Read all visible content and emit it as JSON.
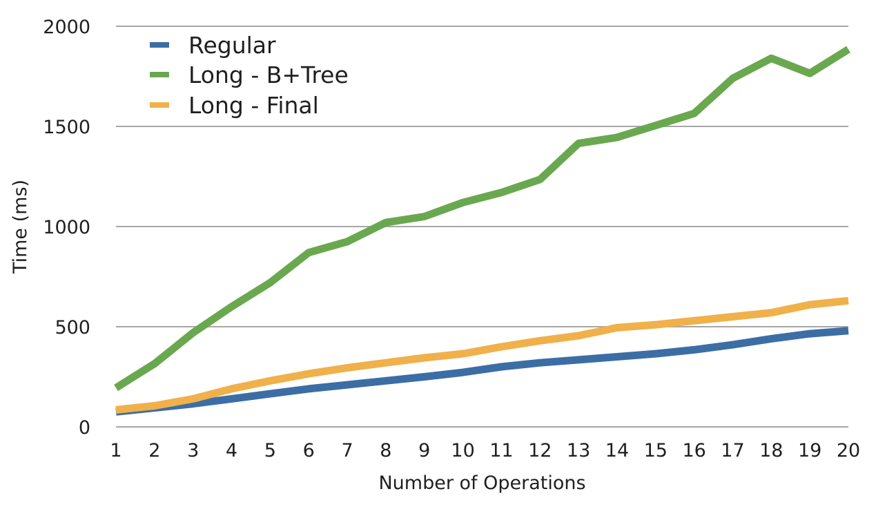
{
  "chart_data": {
    "type": "line",
    "title": "",
    "xlabel": "Number of Operations",
    "ylabel": "Time (ms)",
    "x": [
      1,
      2,
      3,
      4,
      5,
      6,
      7,
      8,
      9,
      10,
      11,
      12,
      13,
      14,
      15,
      16,
      17,
      18,
      19,
      20
    ],
    "x_tick_labels": [
      "1",
      "2",
      "3",
      "4",
      "5",
      "6",
      "7",
      "8",
      "9",
      "10",
      "11",
      "12",
      "13",
      "14",
      "15",
      "16",
      "17",
      "18",
      "19",
      "20"
    ],
    "ylim": [
      0,
      2000
    ],
    "y_ticks": [
      0,
      500,
      1000,
      1500,
      2000
    ],
    "y_tick_labels": [
      "0",
      "500",
      "1000",
      "1500",
      "2000"
    ],
    "grid": true,
    "legend_position": "top-left",
    "series": [
      {
        "name": "Regular",
        "color": "#3c6ea5",
        "values": [
          75,
          95,
          115,
          140,
          165,
          190,
          210,
          230,
          250,
          272,
          300,
          320,
          335,
          350,
          365,
          385,
          410,
          440,
          465,
          480
        ]
      },
      {
        "name": "Long - B+Tree",
        "color": "#6aa84f",
        "values": [
          195,
          315,
          470,
          600,
          720,
          870,
          925,
          1020,
          1050,
          1120,
          1170,
          1235,
          1415,
          1445,
          1505,
          1565,
          1740,
          1840,
          1765,
          1885
        ]
      },
      {
        "name": "Long - Final",
        "color": "#f0b04a",
        "values": [
          85,
          105,
          140,
          190,
          230,
          265,
          295,
          320,
          345,
          365,
          400,
          430,
          455,
          495,
          510,
          530,
          550,
          570,
          610,
          630
        ]
      }
    ]
  }
}
